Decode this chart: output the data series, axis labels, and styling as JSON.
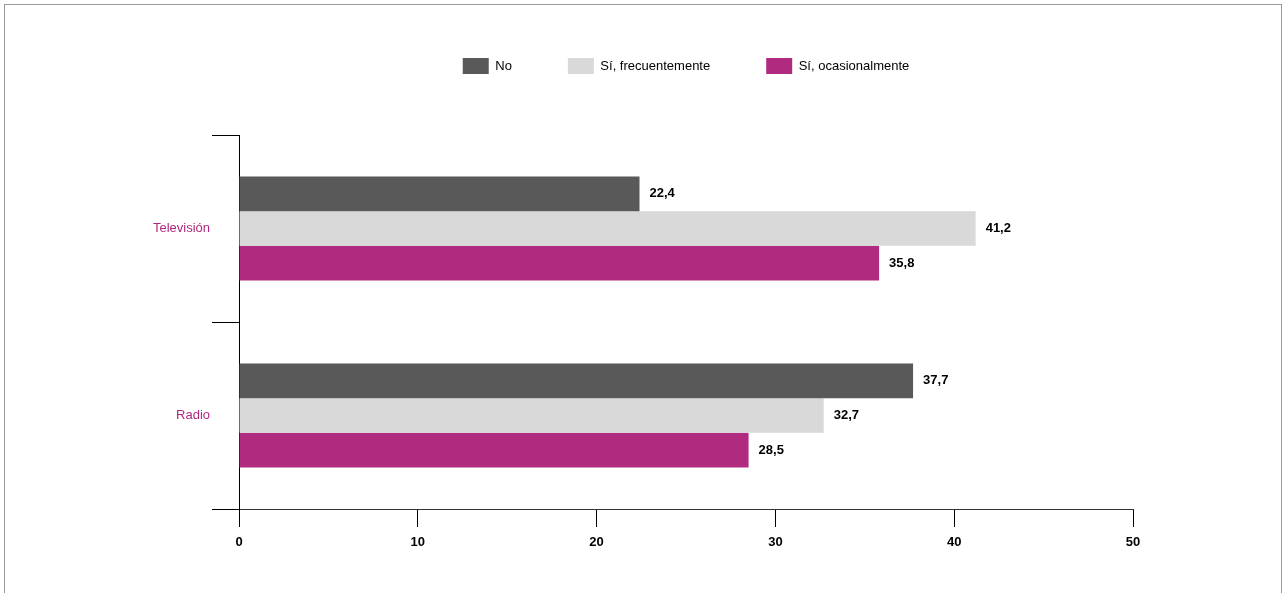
{
  "chart_data": {
    "type": "bar",
    "orientation": "horizontal",
    "categories": [
      "Televisión",
      "Radio"
    ],
    "series": [
      {
        "name": "No",
        "color": "#595959",
        "values": [
          22.4,
          37.7
        ],
        "value_labels": [
          "22,4",
          "37,7"
        ]
      },
      {
        "name": "Sí, frecuentemente",
        "color": "#d9d9d9",
        "values": [
          41.2,
          32.7
        ],
        "value_labels": [
          "41,2",
          "32,7"
        ]
      },
      {
        "name": "Sí, ocasionalmente",
        "color": "#b02a80",
        "values": [
          35.8,
          28.5
        ],
        "value_labels": [
          "35,8",
          "28,5"
        ]
      }
    ],
    "xlim": [
      0,
      50
    ],
    "xticks": [
      0,
      10,
      20,
      30,
      40,
      50
    ],
    "grid": false,
    "legend": "top"
  }
}
